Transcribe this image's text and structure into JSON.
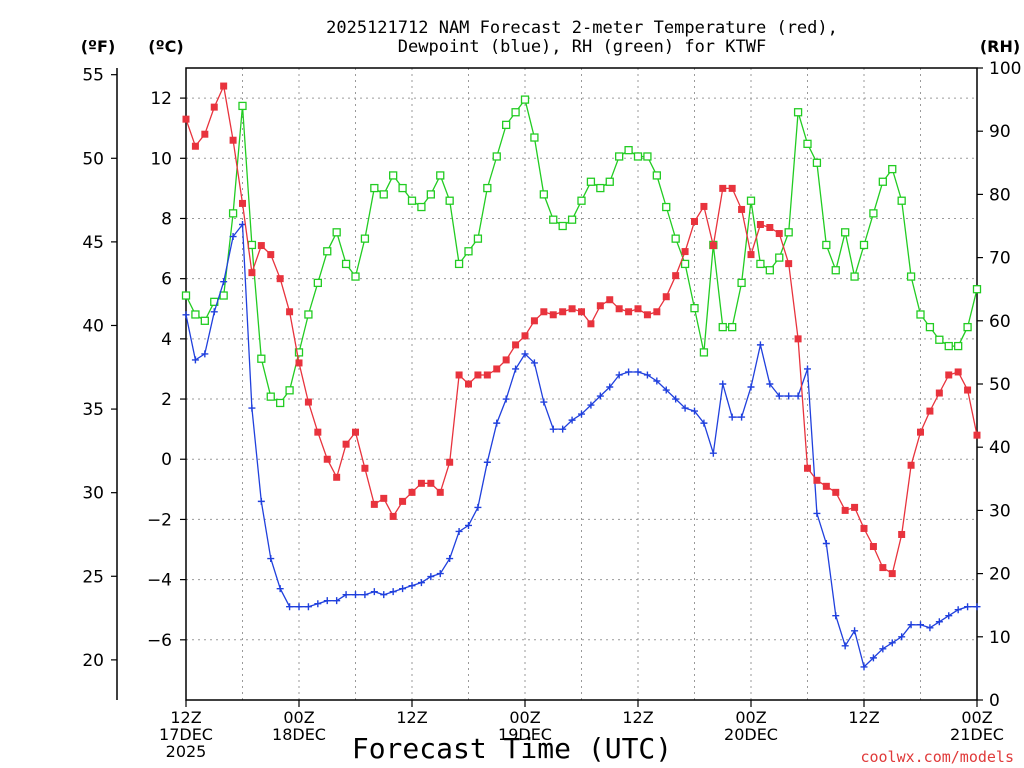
{
  "chart_data": {
    "type": "line",
    "title_line1": "2025121712 NAM Forecast 2-meter Temperature (red),",
    "title_line2": "Dewpoint (blue), RH (green) for KTWF",
    "xlabel": "Forecast Time (UTC)",
    "watermark": "coolwx.com/models",
    "unit_f": "(ºF)",
    "unit_c": "(ºC)",
    "unit_rh": "(RH)",
    "x_range_hours": [
      0,
      84
    ],
    "ylim_c": [
      -8,
      13
    ],
    "ylim_f": [
      18,
      56
    ],
    "ylim_rh": [
      0,
      100
    ],
    "grid": true,
    "colors": {
      "temperature": "#e8333d",
      "dewpoint": "#2040dd",
      "rh": "#22cc22"
    },
    "x_ticks": [
      {
        "hour": 0,
        "l1": "12Z",
        "l2": "17DEC",
        "l3": "2025"
      },
      {
        "hour": 12,
        "l1": "00Z",
        "l2": "18DEC",
        "l3": ""
      },
      {
        "hour": 24,
        "l1": "12Z",
        "l2": "",
        "l3": ""
      },
      {
        "hour": 36,
        "l1": "00Z",
        "l2": "19DEC",
        "l3": ""
      },
      {
        "hour": 48,
        "l1": "12Z",
        "l2": "",
        "l3": ""
      },
      {
        "hour": 60,
        "l1": "00Z",
        "l2": "20DEC",
        "l3": ""
      },
      {
        "hour": 72,
        "l1": "12Z",
        "l2": "",
        "l3": ""
      },
      {
        "hour": 84,
        "l1": "00Z",
        "l2": "21DEC",
        "l3": ""
      }
    ],
    "c_ticks": [
      12,
      10,
      8,
      6,
      4,
      2,
      0,
      -2,
      -4,
      -6
    ],
    "f_ticks": [
      55,
      50,
      45,
      40,
      35,
      30,
      25,
      20
    ],
    "rh_ticks": [
      100,
      90,
      80,
      70,
      60,
      50,
      40,
      30,
      20,
      10,
      0
    ],
    "series": [
      {
        "name": "Temperature (red)",
        "key": "temperature",
        "unit": "C",
        "marker": "filled-square",
        "values": [
          11.3,
          10.4,
          10.8,
          11.7,
          12.4,
          10.6,
          8.5,
          6.2,
          7.1,
          6.8,
          6.0,
          4.9,
          3.2,
          1.9,
          0.9,
          0.0,
          -0.6,
          0.5,
          0.9,
          -0.3,
          -1.5,
          -1.3,
          -1.9,
          -1.4,
          -1.1,
          -0.8,
          -0.8,
          -1.1,
          -0.1,
          2.8,
          2.5,
          2.8,
          2.8,
          3.0,
          3.3,
          3.8,
          4.1,
          4.6,
          4.9,
          4.8,
          4.9,
          5.0,
          4.9,
          4.5,
          5.1,
          5.3,
          5.0,
          4.9,
          5.0,
          4.8,
          4.9,
          5.4,
          6.1,
          6.9,
          7.9,
          8.4,
          7.1,
          9.0,
          9.0,
          8.3,
          6.8,
          7.8,
          7.7,
          7.5,
          6.5,
          4.0,
          -0.3,
          -0.7,
          -0.9,
          -1.1,
          -1.7,
          -1.6,
          -2.3,
          -2.9,
          -3.6,
          -3.8,
          -2.5,
          -0.2,
          0.9,
          1.6,
          2.2,
          2.8,
          2.9,
          2.3,
          0.8
        ]
      },
      {
        "name": "Dewpoint (blue)",
        "key": "dewpoint",
        "unit": "C",
        "marker": "plus",
        "values": [
          4.8,
          3.3,
          3.5,
          4.9,
          5.9,
          7.4,
          7.8,
          1.7,
          -1.4,
          -3.3,
          -4.3,
          -4.9,
          -4.9,
          -4.9,
          -4.8,
          -4.7,
          -4.7,
          -4.5,
          -4.5,
          -4.5,
          -4.4,
          -4.5,
          -4.4,
          -4.3,
          -4.2,
          -4.1,
          -3.9,
          -3.8,
          -3.3,
          -2.4,
          -2.2,
          -1.6,
          -0.1,
          1.2,
          2.0,
          3.0,
          3.5,
          3.2,
          1.9,
          1.0,
          1.0,
          1.3,
          1.5,
          1.8,
          2.1,
          2.4,
          2.8,
          2.9,
          2.9,
          2.8,
          2.6,
          2.3,
          2.0,
          1.7,
          1.6,
          1.2,
          0.2,
          2.5,
          1.4,
          1.4,
          2.4,
          3.8,
          2.5,
          2.1,
          2.1,
          2.1,
          3.0,
          -1.8,
          -2.8,
          -5.2,
          -6.2,
          -5.7,
          -6.9,
          -6.6,
          -6.3,
          -6.1,
          -5.9,
          -5.5,
          -5.5,
          -5.6,
          -5.4,
          -5.2,
          -5.0,
          -4.9,
          -4.9
        ]
      },
      {
        "name": "RH (green)",
        "key": "rh",
        "unit": "%",
        "marker": "open-square",
        "values": [
          64,
          61,
          60,
          63,
          64,
          77,
          94,
          72,
          54,
          48,
          47,
          49,
          55,
          61,
          66,
          71,
          74,
          69,
          67,
          73,
          81,
          80,
          83,
          81,
          79,
          78,
          80,
          83,
          79,
          69,
          71,
          73,
          81,
          86,
          91,
          93,
          95,
          89,
          80,
          76,
          75,
          76,
          79,
          82,
          81,
          82,
          86,
          87,
          86,
          86,
          83,
          78,
          73,
          69,
          62,
          55,
          72,
          59,
          59,
          66,
          79,
          69,
          68,
          70,
          74,
          93,
          88,
          85,
          72,
          68,
          74,
          67,
          72,
          77,
          82,
          84,
          79,
          67,
          61,
          59,
          57,
          56,
          56,
          59,
          65
        ]
      }
    ]
  }
}
